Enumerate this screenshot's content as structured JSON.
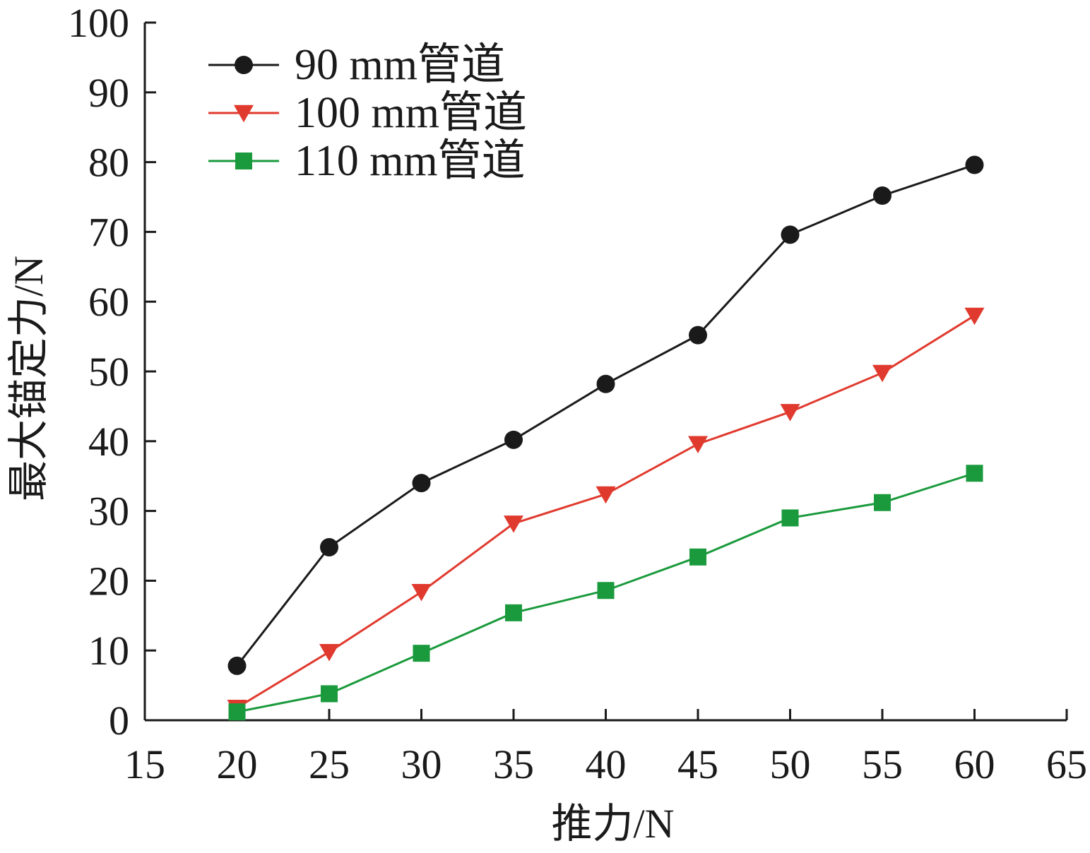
{
  "chart_data": {
    "type": "line",
    "xlabel": "推力/N",
    "ylabel": "最大锚定力/N",
    "xlim": [
      15,
      65
    ],
    "ylim": [
      0,
      100
    ],
    "xticks": [
      15,
      20,
      25,
      30,
      35,
      40,
      45,
      50,
      55,
      60,
      65
    ],
    "yticks": [
      0,
      10,
      20,
      30,
      40,
      50,
      60,
      70,
      80,
      90,
      100
    ],
    "x": [
      20,
      25,
      30,
      35,
      40,
      45,
      50,
      55,
      60
    ],
    "grid": false,
    "legend_position": "top-left",
    "series": [
      {
        "name": "90 mm管道",
        "color": "#1a1a1a",
        "marker": "circle",
        "values": [
          7.8,
          24.8,
          34.0,
          40.2,
          48.2,
          55.2,
          69.6,
          75.2,
          79.6
        ]
      },
      {
        "name": "100 mm管道",
        "color": "#e03a2e",
        "marker": "triangle-down",
        "values": [
          1.8,
          9.8,
          18.4,
          28.2,
          32.4,
          39.6,
          44.2,
          49.8,
          58.0
        ]
      },
      {
        "name": "110 mm管道",
        "color": "#1a9a3c",
        "marker": "square",
        "values": [
          1.2,
          3.8,
          9.6,
          15.4,
          18.6,
          23.4,
          29.0,
          31.2,
          35.4
        ]
      }
    ]
  }
}
